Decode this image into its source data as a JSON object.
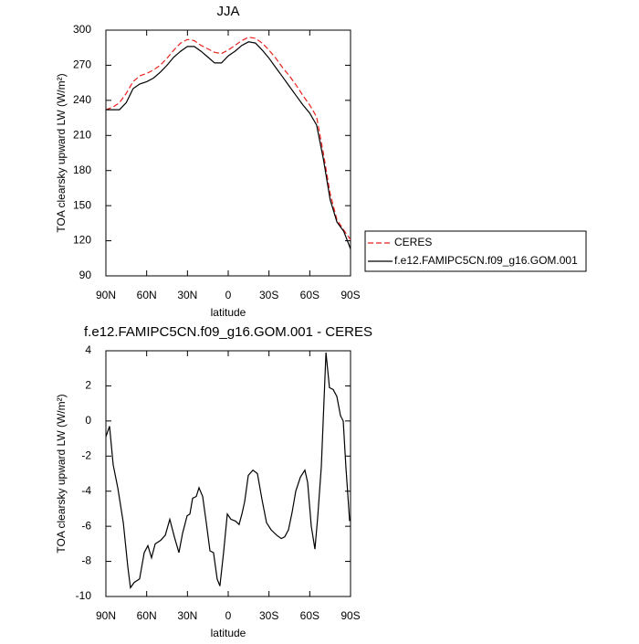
{
  "chart_data": [
    {
      "type": "line",
      "title": "JJA",
      "x_label": "latitude",
      "y_label": "TOA clearsky upward LW (W/m²)",
      "x": [
        90,
        85,
        80,
        75,
        70,
        65,
        60,
        55,
        50,
        45,
        40,
        35,
        30,
        25,
        20,
        15,
        10,
        5,
        0,
        -5,
        -10,
        -15,
        -20,
        -25,
        -30,
        -35,
        -40,
        -45,
        -50,
        -55,
        -60,
        -65,
        -70,
        -75,
        -80,
        -85,
        -90
      ],
      "xlim": [
        90,
        -90
      ],
      "xticks": [
        {
          "value": 90,
          "label": "90N"
        },
        {
          "value": 60,
          "label": "60N"
        },
        {
          "value": 30,
          "label": "30N"
        },
        0,
        {
          "value": -30,
          "label": "30S"
        },
        {
          "value": -60,
          "label": "60S"
        },
        {
          "value": -90,
          "label": "90S"
        }
      ],
      "ylim": [
        90,
        300
      ],
      "yticks": [
        90,
        120,
        150,
        180,
        210,
        240,
        270,
        300
      ],
      "legend": "outside-right",
      "series": [
        {
          "name": "CERES",
          "color": "#e8201c",
          "dashed": true,
          "values": [
            232,
            234,
            238,
            246,
            256,
            261,
            263,
            266,
            270,
            276,
            283,
            289,
            292,
            291,
            287,
            284,
            281,
            280,
            283,
            287,
            291,
            294,
            293,
            289,
            283,
            276,
            268,
            261,
            253,
            244,
            236,
            226,
            195,
            160,
            138,
            129,
            121
          ]
        },
        {
          "name": "f.e12.FAMIPC5CN.f09_g16.GOM.001",
          "color": "#000000",
          "dashed": false,
          "values": [
            232,
            232,
            232,
            238,
            250,
            254,
            256,
            259,
            264,
            270,
            277,
            282,
            286,
            286,
            282,
            277,
            272,
            272,
            278,
            282,
            287,
            290,
            289,
            283,
            276,
            268,
            260,
            252,
            244,
            236,
            229,
            219,
            190,
            155,
            136,
            128,
            113
          ]
        }
      ]
    },
    {
      "type": "line",
      "title": "f.e12.FAMIPC5CN.f09_g16.GOM.001 - CERES",
      "x_label": "latitude",
      "y_label": "TOA clearsky upward LW (W/m²)",
      "color": "#000000",
      "x": [
        90,
        87.3,
        84.6,
        81.3,
        77.2,
        73.9,
        71.9,
        69.2,
        65.2,
        61.8,
        59.1,
        56.4,
        53.7,
        49.7,
        46.3,
        43.0,
        39.6,
        36.3,
        33.6,
        30.2,
        28.2,
        26.2,
        23.5,
        21.5,
        18.8,
        16.1,
        13.4,
        10.8,
        8.1,
        6.1,
        3.4,
        0.7,
        -2.0,
        -5.4,
        -8.0,
        -10.1,
        -12.1,
        -14.8,
        -18.2,
        -21.5,
        -24.9,
        -28.2,
        -31.6,
        -35.6,
        -39.0,
        -41.6,
        -44.3,
        -47.0,
        -49.7,
        -53.1,
        -56.4,
        -58.4,
        -61.1,
        -63.8,
        -65.8,
        -68.5,
        -71.9,
        -74.5,
        -77.2,
        -79.9,
        -82.6,
        -84.6,
        -86.6,
        -89.3
      ],
      "values": [
        -0.9,
        -0.3,
        -2.5,
        -3.8,
        -5.8,
        -8.3,
        -9.5,
        -9.2,
        -9.0,
        -7.5,
        -7.1,
        -7.8,
        -7.0,
        -6.8,
        -6.5,
        -5.6,
        -6.6,
        -7.5,
        -6.4,
        -5.4,
        -5.3,
        -4.4,
        -4.3,
        -3.8,
        -4.3,
        -5.8,
        -7.4,
        -7.5,
        -9.0,
        -9.4,
        -7.5,
        -5.3,
        -5.6,
        -5.7,
        -5.9,
        -5.3,
        -4.6,
        -3.1,
        -2.8,
        -3.0,
        -4.5,
        -5.8,
        -6.2,
        -6.5,
        -6.7,
        -6.6,
        -6.2,
        -5.2,
        -4.0,
        -3.2,
        -2.8,
        -3.5,
        -6.0,
        -7.3,
        -5.5,
        -2.6,
        3.9,
        1.9,
        1.8,
        1.4,
        0.3,
        0.0,
        -2.6,
        -5.7
      ],
      "xlim": [
        90,
        -90
      ],
      "xticks": [
        {
          "value": 90,
          "label": "90N"
        },
        {
          "value": 60,
          "label": "60N"
        },
        {
          "value": 30,
          "label": "30N"
        },
        0,
        {
          "value": -30,
          "label": "30S"
        },
        {
          "value": -60,
          "label": "60S"
        },
        {
          "value": -90,
          "label": "90S"
        }
      ],
      "ylim": [
        -10,
        4
      ],
      "yticks": [
        -10,
        -8,
        -6,
        -4,
        -2,
        0,
        2,
        4
      ]
    }
  ]
}
